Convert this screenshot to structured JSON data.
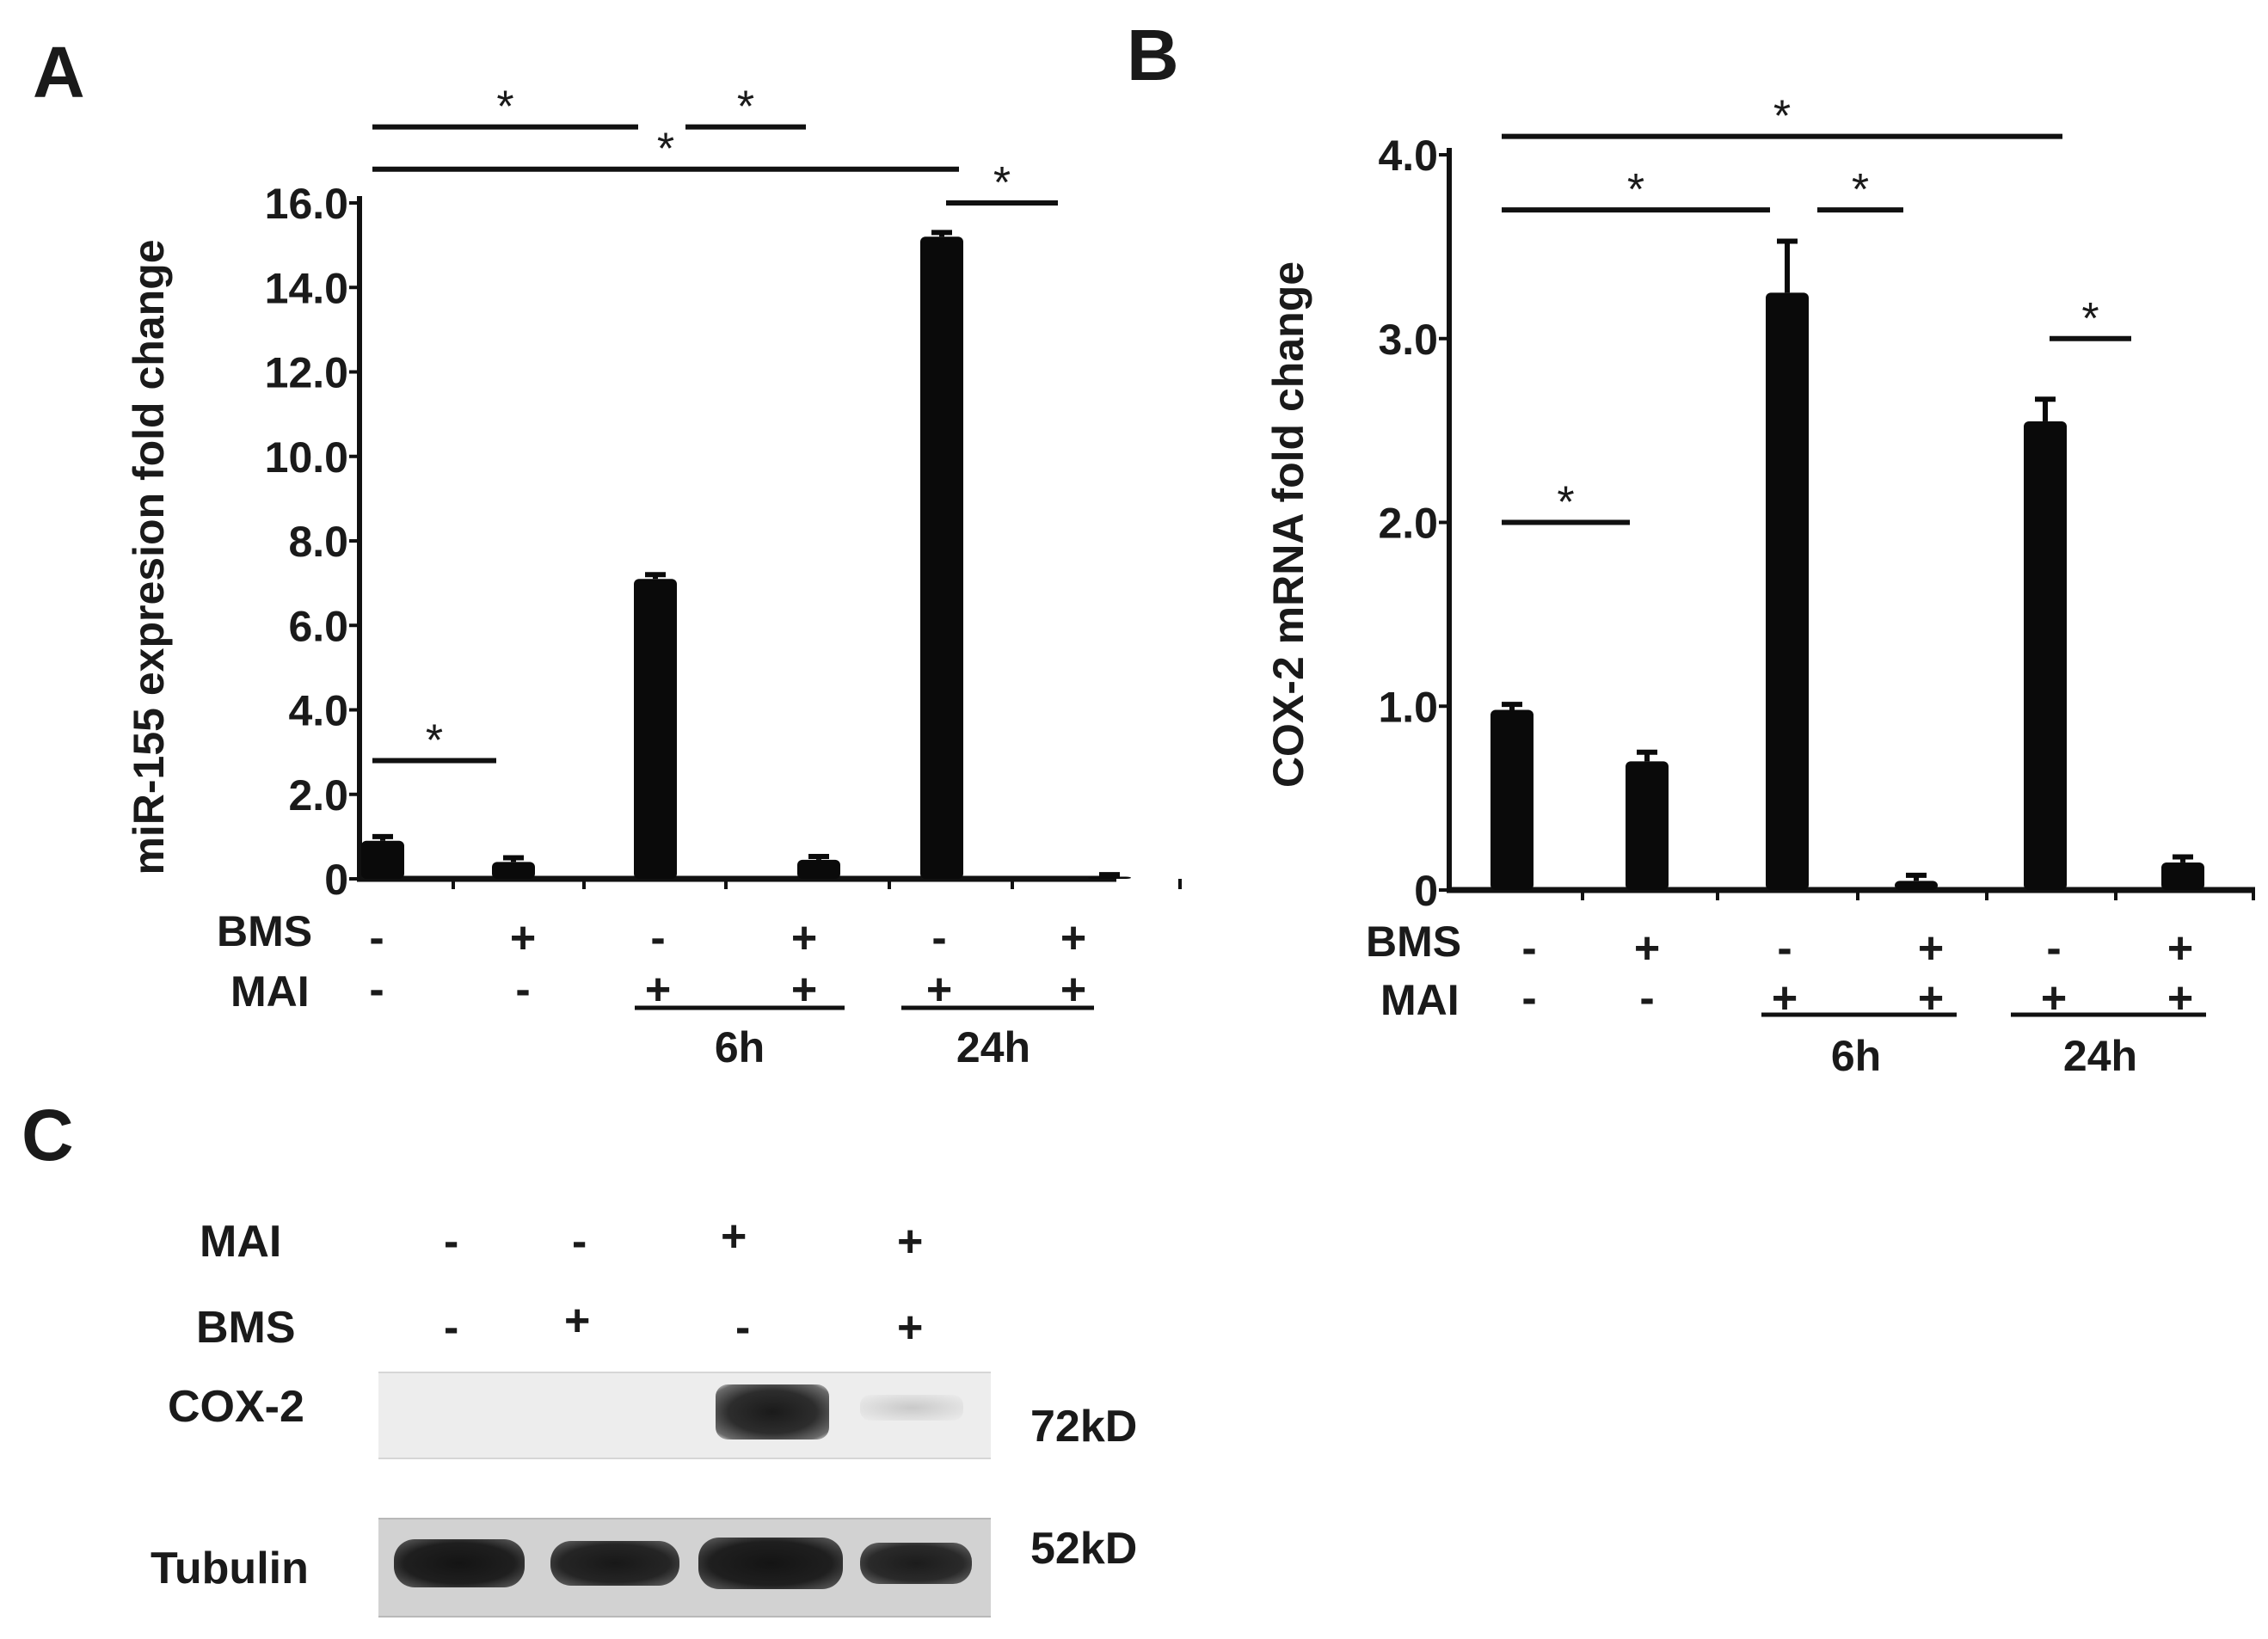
{
  "panels": {
    "a": {
      "letter": "A"
    },
    "b": {
      "letter": "B"
    },
    "c": {
      "letter": "C"
    }
  },
  "chart_data": [
    {
      "type": "bar",
      "panel": "A",
      "ylabel": "miR-155 expresion fold change",
      "ylim": [
        0,
        16
      ],
      "yticks": [
        "16.0",
        "14.0",
        "12.0",
        "10.0",
        "8.0",
        "6.0",
        "4.0",
        "2.0",
        "0"
      ],
      "ytick_values": [
        16,
        14,
        12,
        10,
        8,
        6,
        4,
        2,
        0
      ],
      "categories": [
        "BMS- MAI-",
        "BMS+ MAI-",
        "BMS- MAI+ 6h",
        "BMS+ MAI+ 6h",
        "BMS- MAI+ 24h",
        "BMS+ MAI+ 24h"
      ],
      "values": [
        0.9,
        0.4,
        7.1,
        0.45,
        15.2,
        0.05
      ],
      "errors": [
        0.1,
        0.1,
        0.1,
        0.08,
        0.1,
        0.05
      ],
      "row_labels": [
        "BMS",
        "MAI"
      ],
      "bms_signs": [
        "-",
        "+",
        "-",
        "+",
        "-",
        "+"
      ],
      "mai_signs": [
        "-",
        "-",
        "+",
        "+",
        "+",
        "+"
      ],
      "time_labels": [
        "6h",
        "24h"
      ],
      "significance": [
        {
          "from": 0,
          "to": 4,
          "level": 16.8,
          "label": "*"
        },
        {
          "from": 0,
          "to": 2,
          "level": 17.8,
          "label": "*"
        },
        {
          "from": 2,
          "to": 3,
          "level": 17.8,
          "label": "*"
        },
        {
          "from": 4,
          "to": 5,
          "level": 16.0,
          "label": "*"
        },
        {
          "from": 0,
          "to": 1,
          "level": 2.8,
          "label": "*"
        }
      ],
      "color": "#0a0a0a"
    },
    {
      "type": "bar",
      "panel": "B",
      "ylabel": "COX-2 mRNA fold change",
      "ylim": [
        0,
        4
      ],
      "yticks": [
        "4.0",
        "3.0",
        "2.0",
        "1.0",
        "0"
      ],
      "ytick_values": [
        4,
        3,
        2,
        1,
        0
      ],
      "categories": [
        "BMS- MAI-",
        "BMS+ MAI-",
        "BMS- MAI+ 6h",
        "BMS+ MAI+ 6h",
        "BMS- MAI+ 24h",
        "BMS+ MAI+ 24h"
      ],
      "values": [
        0.98,
        0.7,
        3.25,
        0.05,
        2.55,
        0.15
      ],
      "errors": [
        0.03,
        0.05,
        0.28,
        0.03,
        0.12,
        0.03
      ],
      "row_labels": [
        "BMS",
        "MAI"
      ],
      "bms_signs": [
        "-",
        "+",
        "-",
        "+",
        "-",
        "+"
      ],
      "mai_signs": [
        "-",
        "-",
        "+",
        "+",
        "+",
        "+"
      ],
      "time_labels": [
        "6h",
        "24h"
      ],
      "significance": [
        {
          "from": 0,
          "to": 4,
          "level": 4.1,
          "label": "*"
        },
        {
          "from": 0,
          "to": 2,
          "level": 3.7,
          "label": "*"
        },
        {
          "from": 2,
          "to": 3,
          "level": 3.7,
          "label": "*"
        },
        {
          "from": 4,
          "to": 5,
          "level": 3.0,
          "label": "*"
        },
        {
          "from": 0,
          "to": 1,
          "level": 2.0,
          "label": "*"
        }
      ],
      "color": "#0a0a0a"
    }
  ],
  "western_blot": {
    "row_labels": [
      "MAI",
      "BMS"
    ],
    "mai_signs": [
      "-",
      "-",
      "+",
      "+"
    ],
    "bms_signs": [
      "-",
      "+",
      "-",
      "+"
    ],
    "bands": [
      {
        "name": "COX-2",
        "size": "72kD",
        "intensity": [
          0.0,
          0.0,
          0.95,
          0.08
        ]
      },
      {
        "name": "Tubulin",
        "size": "52kD",
        "intensity": [
          0.95,
          0.9,
          0.95,
          0.85
        ]
      }
    ]
  }
}
